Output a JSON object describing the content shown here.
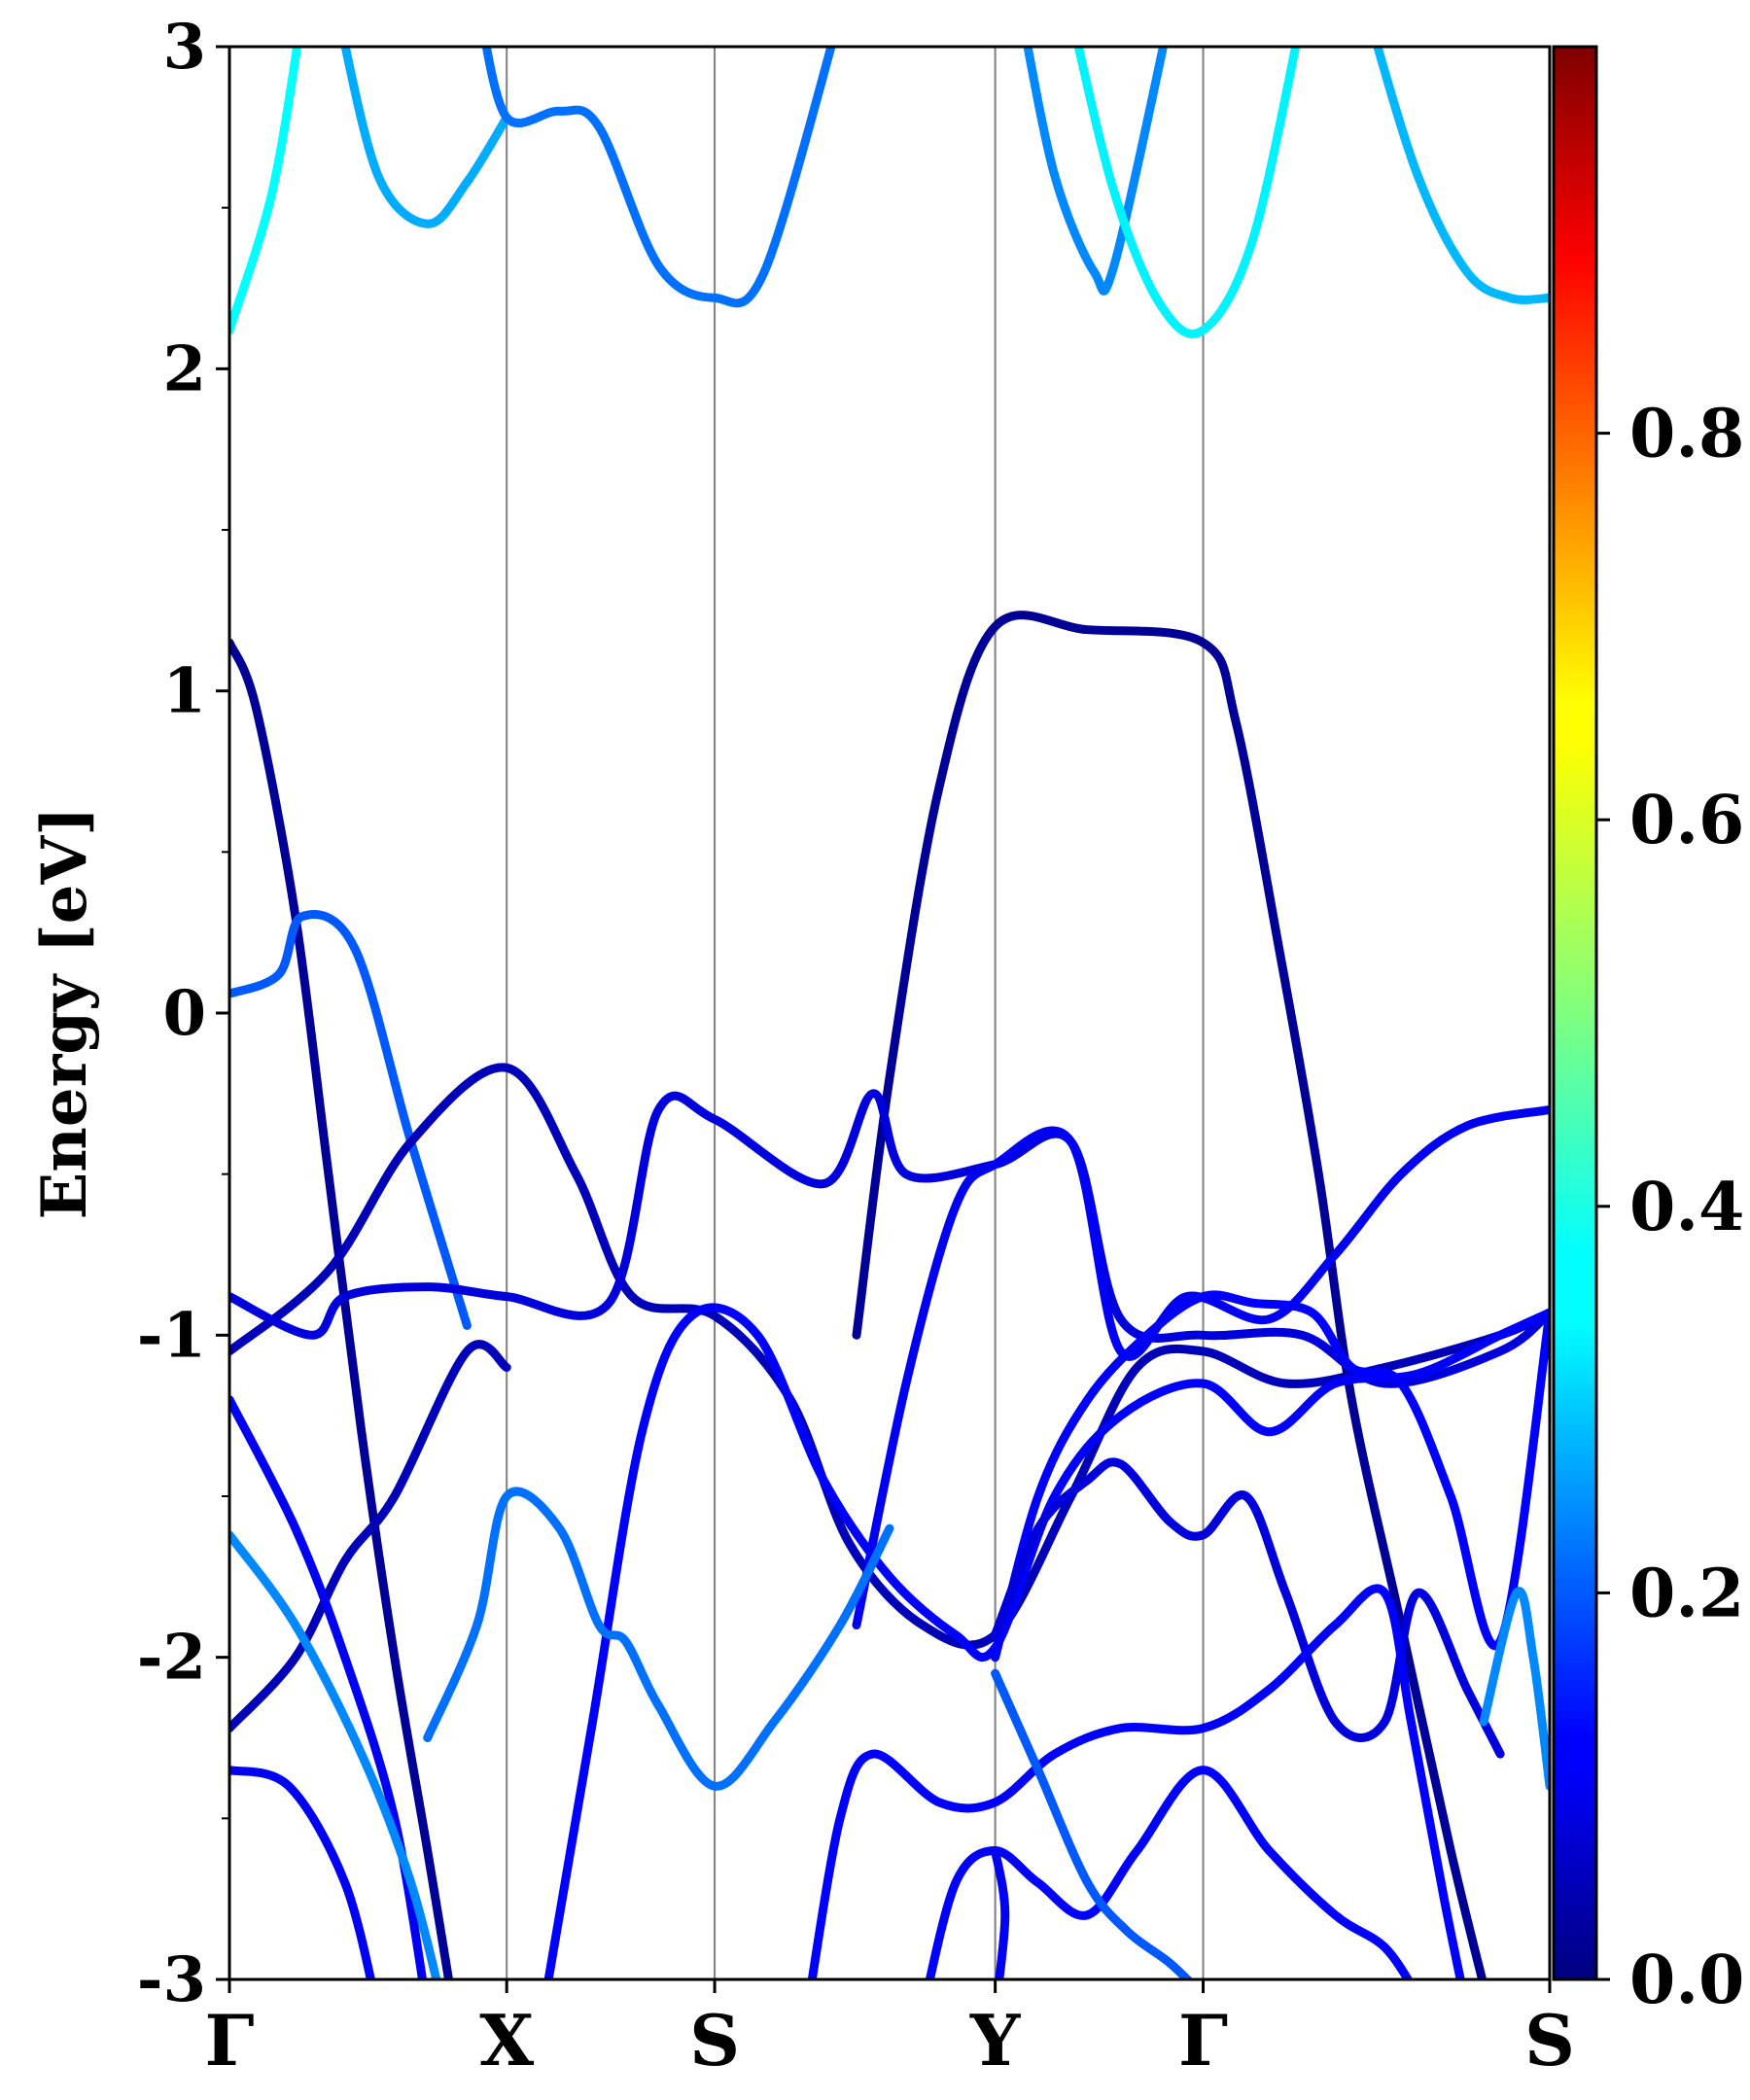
{
  "chart_data": {
    "type": "line",
    "title": "",
    "ylabel": "Energy [eV]",
    "xlabel": "",
    "ylim": [
      -3,
      3
    ],
    "xlim": [
      0,
      4.0
    ],
    "y_major_ticks": [
      {
        "value": 3,
        "label": "3"
      },
      {
        "value": 2,
        "label": "2"
      },
      {
        "value": 1,
        "label": "1"
      },
      {
        "value": 0,
        "label": "0"
      },
      {
        "value": -1,
        "label": "-1"
      },
      {
        "value": -2,
        "label": "-2"
      },
      {
        "value": -3,
        "label": "-3"
      }
    ],
    "y_minor_ticks": [
      2.5,
      1.5,
      0.5,
      -0.5,
      -1.5,
      -2.5
    ],
    "kpoints": [
      {
        "label": "Γ",
        "x": 0.0
      },
      {
        "label": "X",
        "x": 0.84
      },
      {
        "label": "S",
        "x": 1.47
      },
      {
        "label": "Y",
        "x": 2.32
      },
      {
        "label": "Γ",
        "x": 2.95
      },
      {
        "label": "S",
        "x": 4.0
      }
    ],
    "grid": "vertical lines at k-points",
    "colorbar": {
      "colormap": "jet",
      "min": 0.0,
      "max": 1.0,
      "ticks": [
        {
          "value": 0.0,
          "label": "0.0"
        },
        {
          "value": 0.2,
          "label": "0.2"
        },
        {
          "value": 0.4,
          "label": "0.4"
        },
        {
          "value": 0.6,
          "label": "0.6"
        },
        {
          "value": 0.8,
          "label": "0.8"
        }
      ]
    },
    "series": [
      {
        "weight": 0.36,
        "points": [
          [
            0,
            2.12
          ],
          [
            0.13,
            2.55
          ],
          [
            0.22,
            3.1
          ]
        ]
      },
      {
        "weight": 0.27,
        "points": [
          [
            0.33,
            3.1
          ],
          [
            0.45,
            2.6
          ],
          [
            0.6,
            2.45
          ],
          [
            0.72,
            2.58
          ],
          [
            0.84,
            2.78
          ]
        ]
      },
      {
        "weight": 0.22,
        "points": [
          [
            0.76,
            3.1
          ],
          [
            0.84,
            2.78
          ],
          [
            1.0,
            2.8
          ],
          [
            1.12,
            2.75
          ],
          [
            1.3,
            2.32
          ],
          [
            1.47,
            2.22
          ],
          [
            1.62,
            2.3
          ],
          [
            1.85,
            3.1
          ]
        ]
      },
      {
        "weight": 0.24,
        "points": [
          [
            2.4,
            3.1
          ],
          [
            2.5,
            2.6
          ],
          [
            2.62,
            2.3
          ],
          [
            2.68,
            2.32
          ],
          [
            2.85,
            3.1
          ]
        ]
      },
      {
        "weight": 0.33,
        "points": [
          [
            2.55,
            3.1
          ],
          [
            2.68,
            2.55
          ],
          [
            2.82,
            2.2
          ],
          [
            2.95,
            2.12
          ],
          [
            3.1,
            2.4
          ],
          [
            3.25,
            3.1
          ]
        ]
      },
      {
        "weight": 0.28,
        "points": [
          [
            3.45,
            3.1
          ],
          [
            3.6,
            2.6
          ],
          [
            3.75,
            2.3
          ],
          [
            3.88,
            2.22
          ],
          [
            4.0,
            2.22
          ]
        ]
      },
      {
        "weight": 0.02,
        "points": [
          [
            0,
            1.15
          ],
          [
            0.08,
            0.95
          ],
          [
            0.2,
            0.3
          ],
          [
            0.3,
            -0.5
          ],
          [
            0.4,
            -1.3
          ],
          [
            0.5,
            -2.0
          ],
          [
            0.6,
            -2.6
          ],
          [
            0.68,
            -3.1
          ]
        ]
      },
      {
        "weight": 0.02,
        "points": [
          [
            1.9,
            -1.0
          ],
          [
            2.0,
            -0.2
          ],
          [
            2.15,
            0.7
          ],
          [
            2.32,
            1.2
          ],
          [
            2.6,
            1.19
          ],
          [
            2.95,
            1.15
          ],
          [
            3.05,
            0.9
          ],
          [
            3.18,
            0.2
          ],
          [
            3.3,
            -0.5
          ],
          [
            3.4,
            -1.2
          ],
          [
            3.55,
            -1.9
          ],
          [
            3.7,
            -2.6
          ],
          [
            3.82,
            -3.1
          ]
        ]
      },
      {
        "weight": 0.2,
        "points": [
          [
            0,
            0.06
          ],
          [
            0.15,
            0.12
          ],
          [
            0.22,
            0.3
          ],
          [
            0.38,
            0.2
          ],
          [
            0.55,
            -0.4
          ],
          [
            0.72,
            -0.97
          ]
        ]
      },
      {
        "weight": 0.05,
        "points": [
          [
            0,
            -1.05
          ],
          [
            0.3,
            -0.8
          ],
          [
            0.55,
            -0.4
          ],
          [
            0.84,
            -0.17
          ],
          [
            1.05,
            -0.5
          ],
          [
            1.22,
            -0.88
          ],
          [
            1.47,
            -0.94
          ],
          [
            1.7,
            -1.2
          ],
          [
            1.88,
            -1.65
          ],
          [
            2.1,
            -1.9
          ],
          [
            2.32,
            -1.93
          ],
          [
            2.55,
            -1.5
          ],
          [
            2.75,
            -1.1
          ],
          [
            2.95,
            -1.05
          ],
          [
            3.2,
            -1.15
          ],
          [
            3.5,
            -1.1
          ],
          [
            3.85,
            -1.0
          ],
          [
            4.0,
            -0.93
          ]
        ]
      },
      {
        "weight": 0.08,
        "points": [
          [
            0,
            -0.88
          ],
          [
            0.25,
            -1.0
          ],
          [
            0.35,
            -0.88
          ],
          [
            0.6,
            -0.85
          ],
          [
            0.84,
            -0.88
          ],
          [
            1.15,
            -0.9
          ],
          [
            1.3,
            -0.3
          ],
          [
            1.47,
            -0.33
          ],
          [
            1.8,
            -0.53
          ],
          [
            1.95,
            -0.25
          ],
          [
            2.05,
            -0.5
          ],
          [
            2.32,
            -0.47
          ],
          [
            2.55,
            -0.4
          ],
          [
            2.7,
            -0.95
          ],
          [
            2.95,
            -1.0
          ],
          [
            3.25,
            -1.0
          ],
          [
            3.5,
            -1.15
          ],
          [
            3.85,
            -1.05
          ],
          [
            4.0,
            -0.93
          ]
        ]
      },
      {
        "weight": 0.1,
        "points": [
          [
            1.9,
            -1.9
          ],
          [
            2.05,
            -1.15
          ],
          [
            2.2,
            -0.6
          ],
          [
            2.32,
            -0.47
          ],
          [
            2.55,
            -0.4
          ],
          [
            2.7,
            -1.05
          ],
          [
            2.9,
            -0.88
          ],
          [
            3.15,
            -0.95
          ],
          [
            3.35,
            -0.75
          ],
          [
            3.55,
            -0.5
          ],
          [
            3.75,
            -0.35
          ],
          [
            4.0,
            -0.3
          ]
        ]
      },
      {
        "weight": 0.12,
        "points": [
          [
            2.32,
            -2.0
          ],
          [
            2.45,
            -1.5
          ],
          [
            2.6,
            -1.2
          ],
          [
            2.78,
            -1.0
          ],
          [
            2.95,
            -0.88
          ],
          [
            3.1,
            -0.9
          ],
          [
            3.28,
            -0.93
          ],
          [
            3.4,
            -1.1
          ],
          [
            3.55,
            -1.15
          ],
          [
            3.7,
            -1.5
          ],
          [
            3.85,
            -1.95
          ],
          [
            4.0,
            -0.93
          ]
        ]
      },
      {
        "weight": 0.05,
        "points": [
          [
            0,
            -2.22
          ],
          [
            0.2,
            -2.0
          ],
          [
            0.35,
            -1.7
          ],
          [
            0.5,
            -1.5
          ],
          [
            0.72,
            -1.05
          ],
          [
            0.84,
            -1.1
          ]
        ]
      },
      {
        "weight": 0.1,
        "points": [
          [
            0,
            -1.2
          ],
          [
            0.2,
            -1.6
          ],
          [
            0.35,
            -2.0
          ],
          [
            0.5,
            -2.5
          ],
          [
            0.6,
            -3.1
          ]
        ]
      },
      {
        "weight": 0.12,
        "points": [
          [
            0.95,
            -3.1
          ],
          [
            1.1,
            -2.2
          ],
          [
            1.25,
            -1.3
          ],
          [
            1.4,
            -0.94
          ],
          [
            1.6,
            -1.0
          ],
          [
            1.8,
            -1.45
          ],
          [
            2.0,
            -1.75
          ],
          [
            2.2,
            -1.93
          ],
          [
            2.32,
            -1.97
          ],
          [
            2.5,
            -1.5
          ],
          [
            2.7,
            -1.25
          ],
          [
            2.95,
            -1.15
          ],
          [
            3.15,
            -1.3
          ],
          [
            3.35,
            -1.15
          ],
          [
            3.6,
            -1.12
          ],
          [
            3.85,
            -1.0
          ],
          [
            4.0,
            -0.93
          ]
        ]
      },
      {
        "weight": 0.08,
        "points": [
          [
            2.32,
            -1.93
          ],
          [
            2.45,
            -1.6
          ],
          [
            2.6,
            -1.45
          ],
          [
            2.7,
            -1.4
          ],
          [
            2.85,
            -1.58
          ],
          [
            2.95,
            -1.62
          ],
          [
            3.08,
            -1.5
          ],
          [
            3.2,
            -1.8
          ],
          [
            3.35,
            -2.2
          ],
          [
            3.5,
            -2.2
          ],
          [
            3.6,
            -1.8
          ],
          [
            3.75,
            -2.1
          ],
          [
            3.85,
            -2.3
          ]
        ]
      },
      {
        "weight": 0.24,
        "points": [
          [
            0,
            -1.62
          ],
          [
            0.2,
            -1.9
          ],
          [
            0.4,
            -2.3
          ],
          [
            0.55,
            -2.7
          ],
          [
            0.65,
            -3.1
          ]
        ]
      },
      {
        "weight": 0.22,
        "points": [
          [
            0.6,
            -2.25
          ],
          [
            0.75,
            -1.9
          ],
          [
            0.84,
            -1.5
          ],
          [
            1.0,
            -1.6
          ],
          [
            1.12,
            -1.9
          ],
          [
            1.2,
            -1.95
          ],
          [
            1.3,
            -2.15
          ],
          [
            1.47,
            -2.4
          ],
          [
            1.65,
            -2.2
          ],
          [
            1.85,
            -1.9
          ],
          [
            2.0,
            -1.6
          ]
        ]
      },
      {
        "weight": 0.12,
        "points": [
          [
            1.75,
            -3.1
          ],
          [
            1.85,
            -2.5
          ],
          [
            1.95,
            -2.3
          ],
          [
            2.15,
            -2.45
          ],
          [
            2.32,
            -2.45
          ],
          [
            2.5,
            -2.3
          ],
          [
            2.7,
            -2.22
          ],
          [
            2.95,
            -2.22
          ],
          [
            3.15,
            -2.1
          ],
          [
            3.35,
            -1.9
          ],
          [
            3.5,
            -1.8
          ],
          [
            3.58,
            -2.2
          ],
          [
            3.68,
            -2.75
          ],
          [
            3.75,
            -3.1
          ]
        ]
      },
      {
        "weight": 0.1,
        "points": [
          [
            0,
            -2.35
          ],
          [
            0.18,
            -2.4
          ],
          [
            0.35,
            -2.7
          ],
          [
            0.45,
            -3.1
          ]
        ]
      },
      {
        "weight": 0.12,
        "points": [
          [
            2.1,
            -3.1
          ],
          [
            2.2,
            -2.7
          ],
          [
            2.32,
            -2.6
          ],
          [
            2.45,
            -2.7
          ],
          [
            2.6,
            -2.8
          ],
          [
            2.75,
            -2.6
          ],
          [
            2.95,
            -2.35
          ],
          [
            3.15,
            -2.6
          ],
          [
            3.35,
            -2.8
          ],
          [
            3.5,
            -2.9
          ],
          [
            3.6,
            -3.05
          ]
        ]
      },
      {
        "weight": 0.2,
        "points": [
          [
            2.32,
            -2.05
          ],
          [
            2.45,
            -2.35
          ],
          [
            2.6,
            -2.7
          ],
          [
            2.72,
            -2.85
          ],
          [
            2.85,
            -2.95
          ],
          [
            2.95,
            -3.05
          ]
        ]
      },
      {
        "weight": 0.24,
        "points": [
          [
            3.8,
            -2.2
          ],
          [
            3.9,
            -1.8
          ],
          [
            3.95,
            -2.0
          ],
          [
            4.0,
            -2.4
          ]
        ]
      },
      {
        "weight": 0.1,
        "points": [
          [
            2.32,
            -3.1
          ],
          [
            2.35,
            -2.8
          ],
          [
            2.32,
            -2.6
          ]
        ]
      }
    ]
  }
}
